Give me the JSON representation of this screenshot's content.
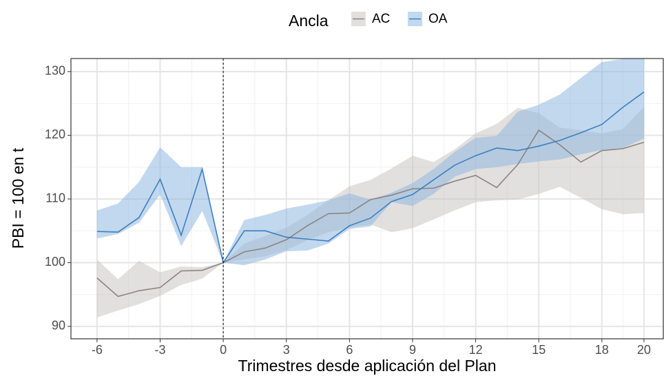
{
  "chart_data": {
    "type": "line",
    "legend_title": "Ancla",
    "x_label": "Trimestres desde aplicación del Plan",
    "y_label": "PBI = 100 en t",
    "x": [
      -6,
      -5,
      -4,
      -3,
      -2,
      -1,
      0,
      1,
      2,
      3,
      4,
      5,
      6,
      7,
      8,
      9,
      10,
      11,
      12,
      13,
      14,
      15,
      16,
      17,
      18,
      19,
      20
    ],
    "series": [
      {
        "name": "AC",
        "color": "#8a847f",
        "fill": "#cbc7c2",
        "values": [
          97.6,
          94.7,
          95.6,
          96.1,
          98.7,
          98.8,
          100,
          101.7,
          102.3,
          103.6,
          105.8,
          107.7,
          107.8,
          109.9,
          110.6,
          111.6,
          111.7,
          112.8,
          113.7,
          111.8,
          115.4,
          120.8,
          118.5,
          115.8,
          117.6,
          117.9,
          118.9
        ],
        "lower": [
          91.4,
          92.5,
          93.5,
          94.8,
          96.5,
          97.5,
          100,
          100.5,
          101,
          102,
          103.5,
          104.8,
          105.5,
          106,
          104.8,
          105.4,
          106.8,
          108.2,
          109.5,
          109.8,
          109.9,
          110.8,
          111.9,
          110.2,
          108.4,
          107.6,
          107.8
        ],
        "upper": [
          100.5,
          97.4,
          100.3,
          98.5,
          99.4,
          99.3,
          100,
          103,
          104.2,
          105.5,
          107.5,
          109.8,
          112,
          113,
          114.8,
          116.8,
          115.8,
          117.8,
          120.3,
          121.8,
          124.3,
          123.5,
          121.2,
          120.8,
          120.3,
          121,
          124.5
        ]
      },
      {
        "name": "OA",
        "color": "#3b7fc0",
        "fill": "#8fb8e0",
        "values": [
          104.9,
          104.8,
          107.1,
          113.1,
          104.3,
          114.7,
          100,
          105,
          105,
          104,
          103.7,
          103.4,
          105.8,
          107,
          109.6,
          110.7,
          113,
          115.3,
          116.8,
          118,
          117.6,
          118.3,
          119.2,
          120.4,
          121.7,
          124.4,
          126.8
        ],
        "lower": [
          103.8,
          104.5,
          106.3,
          110.7,
          102.6,
          108.1,
          100,
          99.6,
          100.5,
          101.8,
          101.9,
          103,
          105.3,
          105.7,
          109.5,
          108.9,
          110.8,
          113.5,
          114.7,
          115,
          115.5,
          115.9,
          116.2,
          117,
          117.7,
          118,
          119.5
        ],
        "upper": [
          108.2,
          109.3,
          112.7,
          118.1,
          115,
          115,
          100,
          106.7,
          107.5,
          108.5,
          109.1,
          109.8,
          110.9,
          109.9,
          111,
          112.5,
          114.7,
          117.4,
          119.6,
          119.9,
          123.7,
          124.8,
          126.4,
          129,
          131.5,
          132,
          132
        ]
      }
    ],
    "vline": 0,
    "xlim": [
      -7.24,
      20.92
    ],
    "xticks": [
      -6,
      -3,
      0,
      3,
      6,
      9,
      12,
      15,
      18,
      20
    ],
    "ylim": [
      88.05,
      132.05
    ],
    "yticks": [
      90,
      100,
      110,
      120,
      130
    ],
    "grid": true
  }
}
